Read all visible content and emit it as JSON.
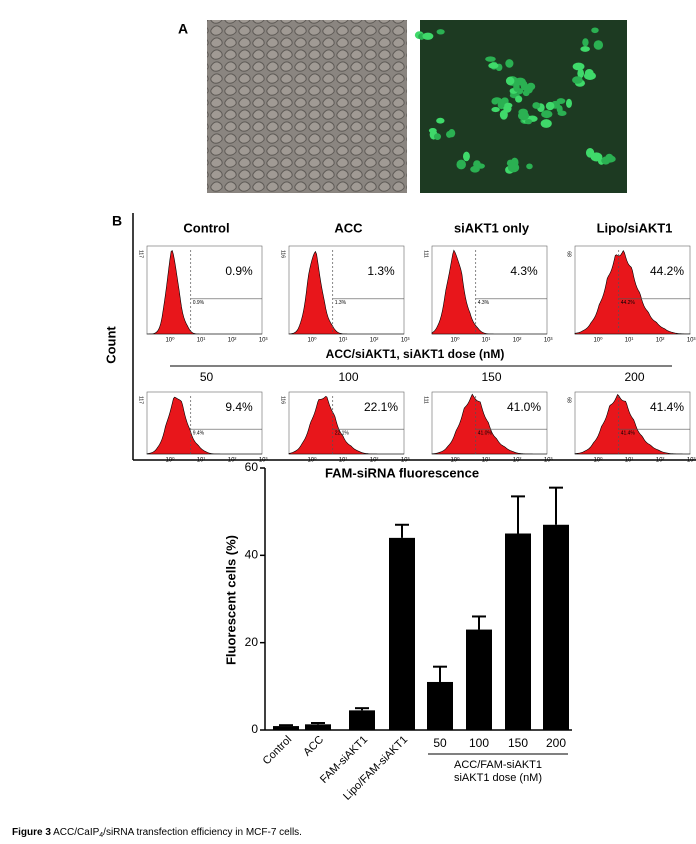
{
  "panel_a": {
    "label": "A"
  },
  "panel_b": {
    "label": "B",
    "y_label": "Count",
    "x_label": "FAM-siRNA fluorescence",
    "row2_title": "ACC/siAKT1, siAKT1 dose (nM)",
    "x_ticks": [
      "10⁰",
      "10¹",
      "10²",
      "10³"
    ],
    "plots": [
      {
        "title": "Control",
        "percent": "0.9%",
        "ymax": "117"
      },
      {
        "title": "ACC",
        "percent": "1.3%",
        "ymax": "116"
      },
      {
        "title": "siAKT1 only",
        "percent": "4.3%",
        "ymax": "111"
      },
      {
        "title": "Lipo/siAKT1",
        "percent": "44.2%",
        "ymax": "68"
      },
      {
        "title": "50",
        "percent": "9.4%",
        "ymax": "117"
      },
      {
        "title": "100",
        "percent": "22.1%",
        "ymax": "116"
      },
      {
        "title": "150",
        "percent": "41.0%",
        "ymax": "111"
      },
      {
        "title": "200",
        "percent": "41.4%",
        "ymax": "68"
      }
    ]
  },
  "chart_data": {
    "type": "bar",
    "y_label": "Fluorescent cells (%)",
    "categories": [
      "Control",
      "ACC",
      "FAM-siAKT1",
      "Lipo/FAM-siAKT1",
      "50",
      "100",
      "150",
      "200"
    ],
    "values": [
      0.9,
      1.3,
      4.5,
      44,
      11,
      23,
      45,
      47
    ],
    "errors": [
      0.2,
      0.3,
      0.5,
      3,
      3.5,
      3,
      8.5,
      8.5
    ],
    "color": "#000000",
    "ylim": [
      0,
      60
    ],
    "yticks": [
      0,
      20,
      40,
      60
    ],
    "group_label": [
      "ACC/FAM-siAKT1",
      "siAKT1 dose (nM)"
    ]
  },
  "caption": {
    "label": "Figure 3",
    "text_before": "ACC/CaIP",
    "subscript": "4",
    "text_after": "/siRNA transfection efficiency in MCF-7 cells."
  }
}
